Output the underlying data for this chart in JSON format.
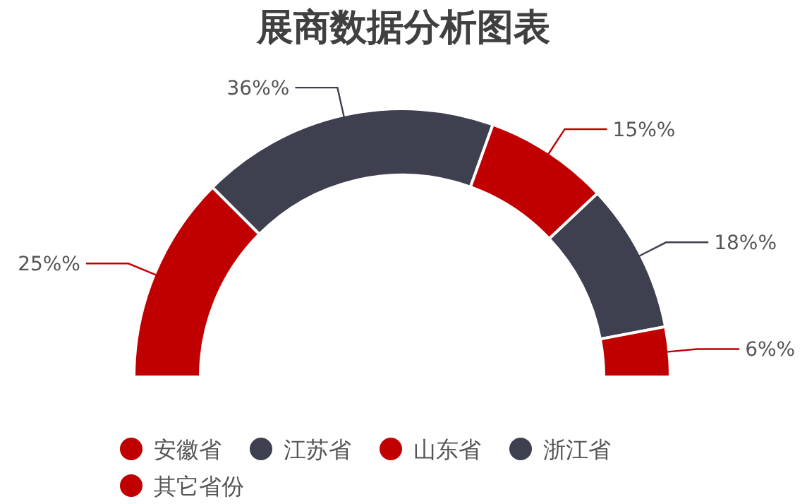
{
  "chart_data": {
    "type": "donut",
    "title": "展商数据分析图表",
    "categories": [
      "安徽省",
      "江苏省",
      "山东省",
      "浙江省",
      "其它省份"
    ],
    "values": [
      25,
      36,
      15,
      18,
      6
    ],
    "colors": [
      "#c00000",
      "#3e3f4f",
      "#c00000",
      "#3e3f4f",
      "#c00000"
    ],
    "value_labels": [
      "25%%",
      "36%%",
      "15%%",
      "18%%",
      "6%%"
    ],
    "legend": "bottom"
  }
}
